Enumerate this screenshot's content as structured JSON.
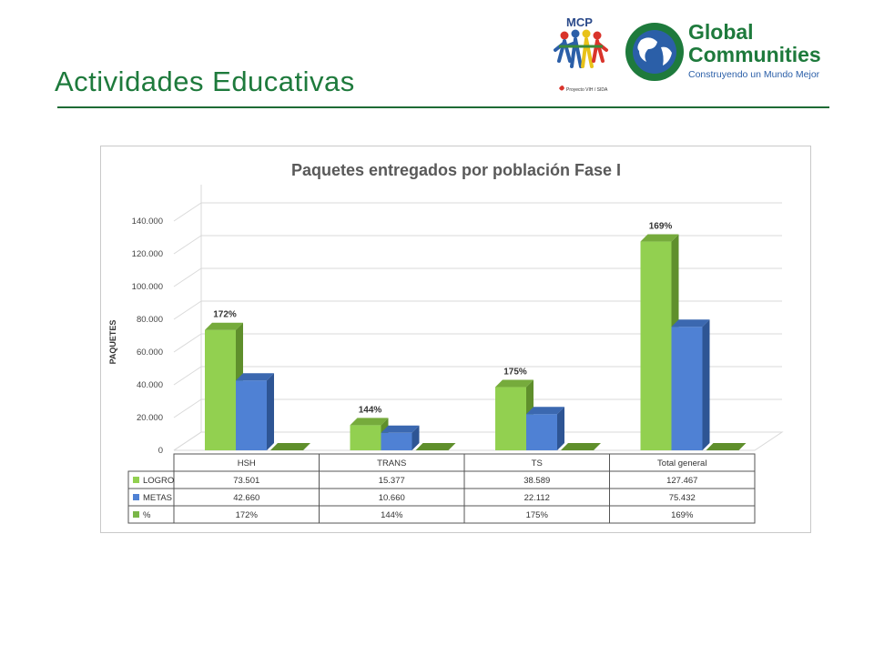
{
  "slide": {
    "title": "Actividades Educativas"
  },
  "logos": {
    "mcp": {
      "name": "MCP",
      "tagline": "Proyecto VIH / SIDA"
    },
    "global_communities": {
      "line1": "Global",
      "line2": "Communities",
      "tagline": "Construyendo un Mundo Mejor"
    }
  },
  "colors": {
    "title_green": "#1e7a3c",
    "logro_green": "#92d050",
    "metas_blue": "#4f81d4",
    "percent_green": "#7ab648"
  },
  "chart_data": {
    "type": "bar",
    "title": "Paquetes entregados por población Fase I",
    "ylabel": "PAQUETES",
    "xlabel": "",
    "ylim": [
      0,
      140000
    ],
    "yticks": [
      "0",
      "20.000",
      "40.000",
      "60.000",
      "80.000",
      "100.000",
      "120.000",
      "140.000"
    ],
    "ytick_values": [
      0,
      20000,
      40000,
      60000,
      80000,
      100000,
      120000,
      140000
    ],
    "grid": true,
    "categories": [
      "HSH",
      "TRANS",
      "TS",
      "Total general"
    ],
    "series": [
      {
        "name": "LOGRO",
        "values": [
          73501,
          15377,
          38589,
          127467
        ],
        "labels": [
          "73.501",
          "15.377",
          "38.589",
          "127.467"
        ],
        "color": "#92d050"
      },
      {
        "name": "METAS",
        "values": [
          42660,
          10660,
          22112,
          75432
        ],
        "labels": [
          "42.660",
          "10.660",
          "22.112",
          "75.432"
        ],
        "color": "#4f81d4"
      },
      {
        "name": "%",
        "values": [
          172,
          144,
          175,
          169
        ],
        "labels": [
          "172%",
          "144%",
          "175%",
          "169%"
        ],
        "color": "#7ab648"
      }
    ],
    "percent_labels": [
      "172%",
      "144%",
      "175%",
      "169%"
    ],
    "legend": "data-table-below"
  }
}
